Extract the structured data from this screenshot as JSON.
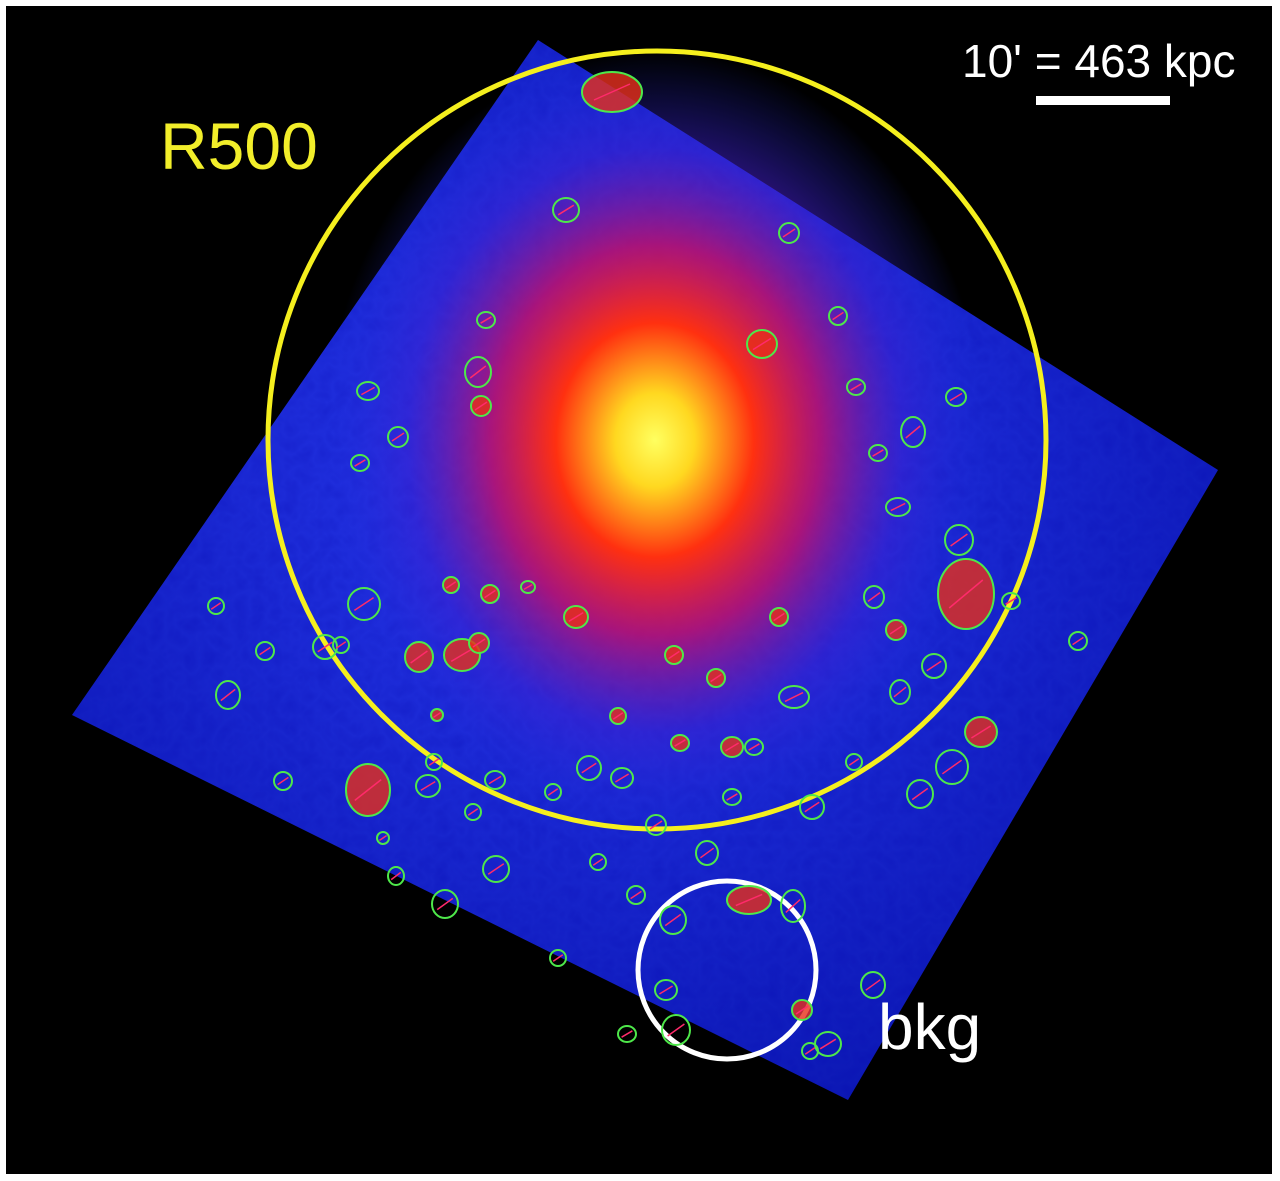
{
  "image": {
    "subject": "X-ray image of galaxy cluster with point sources masked",
    "colors": {
      "background": "#000000",
      "field": "#1a2de0",
      "core": "#ffff40",
      "r500_circle": "#f5ef1e",
      "bkg_circle": "#ffffff",
      "source_regions": "#4ee84a"
    }
  },
  "labels": {
    "r500": "R500",
    "bkg": "bkg",
    "scale": "10' = 463 kpc"
  }
}
